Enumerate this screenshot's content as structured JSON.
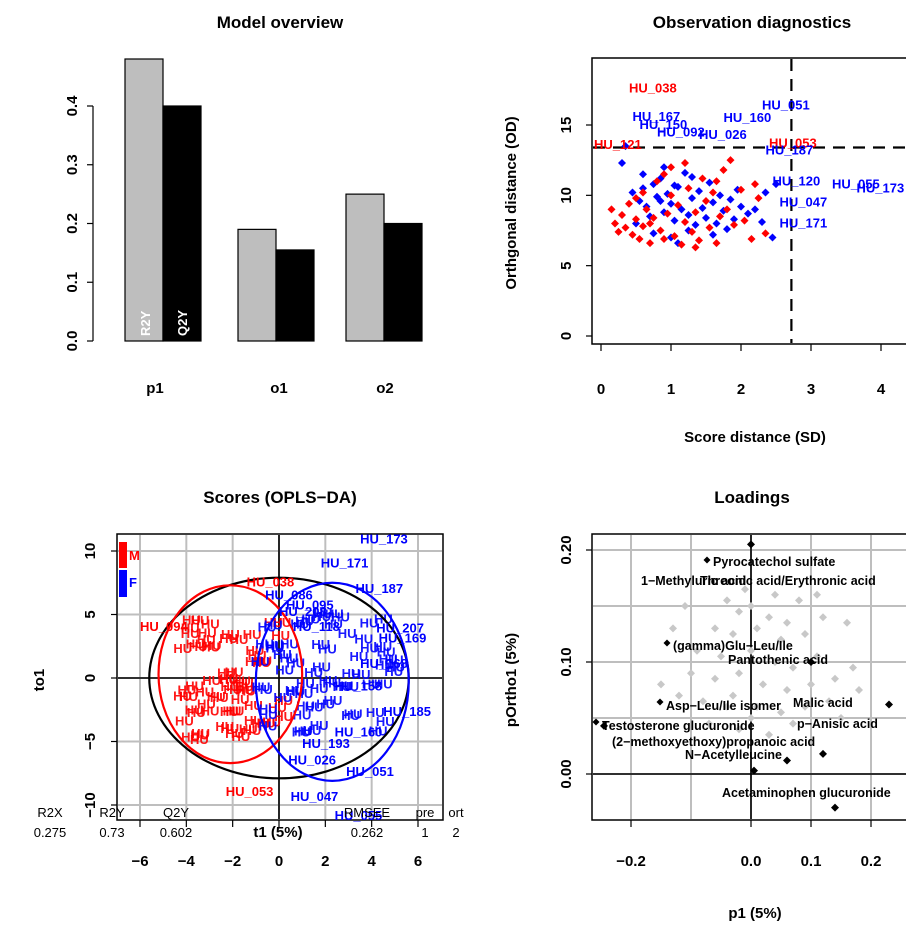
{
  "chart_data": [
    {
      "type": "bar",
      "title": "Model overview",
      "categories": [
        "p1",
        "o1",
        "o2"
      ],
      "series": [
        {
          "name": "R2Y",
          "color": "#bebebe",
          "values": [
            0.48,
            0.19,
            0.25
          ]
        },
        {
          "name": "Q2Y",
          "color": "#000000",
          "values": [
            0.4,
            0.155,
            0.2
          ]
        }
      ],
      "yticks": [
        "0.0",
        "0.1",
        "0.2",
        "0.3",
        "0.4"
      ],
      "ylim": [
        0,
        0.48
      ]
    },
    {
      "type": "scatter",
      "title": "Observation diagnostics",
      "xlabel": "Score distance (SD)",
      "ylabel": "Orthgonal distance (OD)",
      "xlim": [
        -0.2,
        4.3
      ],
      "ylim": [
        -0.5,
        20
      ],
      "xticks": [
        "0",
        "1",
        "2",
        "3",
        "4"
      ],
      "yticks": [
        "0",
        "5",
        "10",
        "15"
      ],
      "thresholds": {
        "sd": 2.72,
        "od": 13.4
      },
      "labels": [
        {
          "text": "HU_038",
          "x": 0.4,
          "y": 17.3,
          "color": "red"
        },
        {
          "text": "HU_167",
          "x": 0.45,
          "y": 15.3,
          "color": "blue"
        },
        {
          "text": "HU_150",
          "x": 0.55,
          "y": 14.7,
          "color": "blue"
        },
        {
          "text": "HU_160",
          "x": 1.75,
          "y": 15.2,
          "color": "blue"
        },
        {
          "text": "HU_051",
          "x": 2.3,
          "y": 16.1,
          "color": "blue"
        },
        {
          "text": "HU_092",
          "x": 0.8,
          "y": 14.2,
          "color": "blue"
        },
        {
          "text": "HU_026",
          "x": 1.4,
          "y": 14.0,
          "color": "blue"
        },
        {
          "text": "HU_121",
          "x": -0.1,
          "y": 13.3,
          "color": "red"
        },
        {
          "text": "HU_053",
          "x": 2.4,
          "y": 13.4,
          "color": "red"
        },
        {
          "text": "HU_187",
          "x": 2.35,
          "y": 12.9,
          "color": "blue"
        },
        {
          "text": "HU_120",
          "x": 2.45,
          "y": 10.7,
          "color": "blue"
        },
        {
          "text": "HU_055",
          "x": 3.3,
          "y": 10.5,
          "color": "blue"
        },
        {
          "text": "HU_173",
          "x": 3.65,
          "y": 10.2,
          "color": "blue"
        },
        {
          "text": "HU_047",
          "x": 2.55,
          "y": 9.2,
          "color": "blue"
        },
        {
          "text": "HU_171",
          "x": 2.55,
          "y": 7.7,
          "color": "blue"
        }
      ],
      "points": [
        [
          0.3,
          12.3,
          "blue"
        ],
        [
          0.35,
          13.5,
          "blue"
        ],
        [
          0.45,
          10.2,
          "blue"
        ],
        [
          0.55,
          9.6,
          "blue"
        ],
        [
          0.6,
          10.5,
          "blue"
        ],
        [
          0.65,
          9.2,
          "blue"
        ],
        [
          0.7,
          8.5,
          "blue"
        ],
        [
          0.75,
          10.8,
          "blue"
        ],
        [
          0.8,
          9.9,
          "blue"
        ],
        [
          0.85,
          11.2,
          "blue"
        ],
        [
          0.9,
          8.8,
          "blue"
        ],
        [
          0.95,
          10.1,
          "blue"
        ],
        [
          1.0,
          9.4,
          "blue"
        ],
        [
          1.05,
          8.2,
          "blue"
        ],
        [
          1.1,
          10.6,
          "blue"
        ],
        [
          1.15,
          9.0,
          "blue"
        ],
        [
          1.2,
          11.6,
          "blue"
        ],
        [
          1.25,
          8.6,
          "blue"
        ],
        [
          1.3,
          9.8,
          "blue"
        ],
        [
          1.35,
          7.9,
          "blue"
        ],
        [
          1.4,
          10.3,
          "blue"
        ],
        [
          1.45,
          9.1,
          "blue"
        ],
        [
          1.5,
          8.4,
          "blue"
        ],
        [
          1.55,
          10.9,
          "blue"
        ],
        [
          1.6,
          9.5,
          "blue"
        ],
        [
          1.65,
          8.0,
          "blue"
        ],
        [
          1.7,
          10.0,
          "blue"
        ],
        [
          1.75,
          8.9,
          "blue"
        ],
        [
          1.8,
          7.6,
          "blue"
        ],
        [
          1.85,
          9.7,
          "blue"
        ],
        [
          1.9,
          8.3,
          "blue"
        ],
        [
          1.95,
          10.4,
          "blue"
        ],
        [
          2.0,
          9.2,
          "blue"
        ],
        [
          2.1,
          8.7,
          "blue"
        ],
        [
          2.2,
          9.0,
          "blue"
        ],
        [
          2.3,
          8.1,
          "blue"
        ],
        [
          2.45,
          7.0,
          "blue"
        ],
        [
          2.35,
          10.2,
          "blue"
        ],
        [
          2.5,
          10.8,
          "blue"
        ],
        [
          0.5,
          8.0,
          "blue"
        ],
        [
          0.75,
          7.3,
          "blue"
        ],
        [
          1.0,
          7.0,
          "blue"
        ],
        [
          1.25,
          7.5,
          "blue"
        ],
        [
          0.9,
          12.0,
          "blue"
        ],
        [
          1.3,
          11.3,
          "blue"
        ],
        [
          1.1,
          6.6,
          "blue"
        ],
        [
          0.6,
          11.5,
          "blue"
        ],
        [
          1.6,
          7.2,
          "blue"
        ],
        [
          0.85,
          9.6,
          "blue"
        ],
        [
          1.05,
          10.7,
          "blue"
        ],
        [
          0.15,
          9.0,
          "red"
        ],
        [
          0.2,
          8.0,
          "red"
        ],
        [
          0.25,
          7.4,
          "red"
        ],
        [
          0.3,
          8.6,
          "red"
        ],
        [
          0.35,
          7.7,
          "red"
        ],
        [
          0.4,
          9.4,
          "red"
        ],
        [
          0.45,
          7.2,
          "red"
        ],
        [
          0.5,
          8.3,
          "red"
        ],
        [
          0.55,
          6.9,
          "red"
        ],
        [
          0.6,
          7.8,
          "red"
        ],
        [
          0.65,
          9.0,
          "red"
        ],
        [
          0.7,
          6.6,
          "red"
        ],
        [
          0.75,
          8.4,
          "red"
        ],
        [
          0.8,
          11.0,
          "red"
        ],
        [
          0.85,
          7.5,
          "red"
        ],
        [
          0.9,
          6.9,
          "red"
        ],
        [
          0.95,
          8.7,
          "red"
        ],
        [
          1.0,
          10.0,
          "red"
        ],
        [
          1.05,
          7.1,
          "red"
        ],
        [
          1.1,
          9.3,
          "red"
        ],
        [
          1.15,
          6.5,
          "red"
        ],
        [
          1.2,
          8.1,
          "red"
        ],
        [
          1.25,
          10.5,
          "red"
        ],
        [
          1.3,
          7.4,
          "red"
        ],
        [
          1.35,
          8.8,
          "red"
        ],
        [
          1.4,
          6.8,
          "red"
        ],
        [
          1.45,
          11.2,
          "red"
        ],
        [
          1.5,
          9.6,
          "red"
        ],
        [
          1.55,
          7.7,
          "red"
        ],
        [
          1.6,
          10.2,
          "red"
        ],
        [
          1.65,
          6.6,
          "red"
        ],
        [
          1.7,
          8.5,
          "red"
        ],
        [
          1.75,
          11.8,
          "red"
        ],
        [
          1.8,
          9.0,
          "red"
        ],
        [
          1.85,
          12.5,
          "red"
        ],
        [
          1.9,
          7.9,
          "red"
        ],
        [
          2.0,
          10.4,
          "red"
        ],
        [
          2.05,
          8.2,
          "red"
        ],
        [
          2.15,
          6.9,
          "red"
        ],
        [
          2.25,
          9.8,
          "red"
        ],
        [
          2.35,
          7.3,
          "red"
        ],
        [
          1.2,
          12.3,
          "red"
        ],
        [
          0.9,
          11.5,
          "red"
        ],
        [
          0.6,
          10.2,
          "red"
        ],
        [
          1.0,
          12.0,
          "red"
        ],
        [
          1.65,
          11.0,
          "red"
        ],
        [
          2.2,
          10.8,
          "red"
        ],
        [
          0.7,
          8.0,
          "red"
        ],
        [
          1.35,
          6.3,
          "red"
        ],
        [
          0.5,
          9.8,
          "red"
        ]
      ]
    },
    {
      "type": "scatter",
      "title": "Scores (OPLS−DA)",
      "xlabel": "t1 (5%)",
      "ylabel": "to1",
      "xlim": [
        -6.6,
        6.8
      ],
      "ylim": [
        -11.5,
        11.8
      ],
      "xticks": [
        "−6",
        "−4",
        "−2",
        "0",
        "2",
        "4",
        "6"
      ],
      "yticks": [
        "−10",
        "−5",
        "0",
        "5",
        "10"
      ],
      "legend": [
        {
          "label": "M",
          "color": "red"
        },
        {
          "label": "F",
          "color": "blue"
        }
      ],
      "labels": [
        {
          "text": "HU_173",
          "x": 3.5,
          "y": 10.6,
          "color": "blue"
        },
        {
          "text": "HU_171",
          "x": 1.8,
          "y": 8.7,
          "color": "blue"
        },
        {
          "text": "HU_187",
          "x": 3.3,
          "y": 6.7,
          "color": "blue"
        },
        {
          "text": "HU_038",
          "x": -1.4,
          "y": 7.2,
          "color": "red"
        },
        {
          "text": "HU_086",
          "x": -0.6,
          "y": 6.2,
          "color": "blue"
        },
        {
          "text": "HU_095",
          "x": 0.3,
          "y": 5.4,
          "color": "blue"
        },
        {
          "text": "HU_208",
          "x": 0.0,
          "y": 4.9,
          "color": "blue"
        },
        {
          "text": "HU_118",
          "x": 0.6,
          "y": 3.7,
          "color": "blue"
        },
        {
          "text": "HU_207",
          "x": 4.2,
          "y": 3.6,
          "color": "blue"
        },
        {
          "text": "HU_169",
          "x": 4.3,
          "y": 2.8,
          "color": "blue"
        },
        {
          "text": "HU_094",
          "x": -6.0,
          "y": 3.7,
          "color": "red"
        },
        {
          "text": "HU_168",
          "x": 3.5,
          "y": 0.8,
          "color": "blue"
        },
        {
          "text": "HU_158",
          "x": 2.4,
          "y": -1.0,
          "color": "blue"
        },
        {
          "text": "HU_185",
          "x": 4.5,
          "y": -3.0,
          "color": "blue"
        },
        {
          "text": "HU_160",
          "x": 2.4,
          "y": -4.6,
          "color": "blue"
        },
        {
          "text": "HU_193",
          "x": 1.0,
          "y": -5.5,
          "color": "blue"
        },
        {
          "text": "HU_026",
          "x": 0.4,
          "y": -6.8,
          "color": "blue"
        },
        {
          "text": "HU_051",
          "x": 2.9,
          "y": -7.7,
          "color": "blue"
        },
        {
          "text": "HU_053",
          "x": -2.3,
          "y": -9.3,
          "color": "red"
        },
        {
          "text": "HU_047",
          "x": 0.5,
          "y": -9.7,
          "color": "blue"
        },
        {
          "text": "HU_055",
          "x": 2.4,
          "y": -11.2,
          "color": "blue"
        }
      ],
      "ellipses": [
        {
          "cx": 0.0,
          "cy": 0.0,
          "rx": 5.6,
          "ry": 7.9,
          "color": "black"
        },
        {
          "cx": -2.1,
          "cy": 0.3,
          "rx": 3.1,
          "ry": 7.0,
          "color": "red"
        },
        {
          "cx": 2.3,
          "cy": -0.3,
          "rx": 3.3,
          "ry": 7.8,
          "color": "blue"
        }
      ]
    },
    {
      "type": "scatter",
      "title": "Loadings",
      "xlabel": "p1 (5%)",
      "ylabel": "pOrtho1 (5%)",
      "xlim": [
        -0.29,
        0.305
      ],
      "ylim": [
        -0.04,
        0.212
      ],
      "xticks": [
        "−0.2",
        "0.0",
        "0.1",
        "0.2"
      ],
      "yticks": [
        "0.00",
        "0.10",
        "0.20"
      ],
      "labeled_points": [
        {
          "text": "Pyrocatechol sulfate",
          "x": -0.055,
          "y": 0.185
        },
        {
          "text": "1−Methyluric acid",
          "x": -0.06,
          "y": 0.17
        },
        {
          "text": "Threonic acid/Erythronic acid",
          "x": 0.14,
          "y": 0.17
        },
        {
          "text": "(gamma)Glu−Leu/Ile",
          "x": -0.12,
          "y": 0.116
        },
        {
          "text": "Pantothenic acid",
          "x": 0.2,
          "y": 0.1
        },
        {
          "text": "Asp−Leu/Ile isomer",
          "x": -0.14,
          "y": 0.062
        },
        {
          "text": "Malic acid",
          "x": 0.23,
          "y": 0.062
        },
        {
          "text": "Testosterone glucuronide",
          "x": -0.245,
          "y": 0.043
        },
        {
          "text": "p−Anisic acid",
          "x": 0.235,
          "y": 0.043
        },
        {
          "text": "(2−methoxyethoxy)propanoic acid",
          "x": 0.12,
          "y": 0.03
        },
        {
          "text": "N−Acetylleucine",
          "x": 0.065,
          "y": 0.012
        },
        {
          "text": "Acetaminophen glucuronide",
          "x": 0.14,
          "y": -0.03
        }
      ],
      "gray_points": [
        [
          -0.04,
          0.155
        ],
        [
          -0.02,
          0.145
        ],
        [
          0.0,
          0.15
        ],
        [
          0.03,
          0.14
        ],
        [
          -0.06,
          0.13
        ],
        [
          -0.03,
          0.125
        ],
        [
          0.01,
          0.13
        ],
        [
          0.05,
          0.12
        ],
        [
          0.09,
          0.125
        ],
        [
          0.12,
          0.14
        ],
        [
          0.16,
          0.135
        ],
        [
          -0.09,
          0.11
        ],
        [
          -0.05,
          0.105
        ],
        [
          0.0,
          0.11
        ],
        [
          0.04,
          0.1
        ],
        [
          0.07,
          0.095
        ],
        [
          0.11,
          0.105
        ],
        [
          -0.1,
          0.09
        ],
        [
          -0.06,
          0.085
        ],
        [
          -0.02,
          0.09
        ],
        [
          0.02,
          0.08
        ],
        [
          0.06,
          0.075
        ],
        [
          0.1,
          0.08
        ],
        [
          0.14,
          0.085
        ],
        [
          -0.12,
          0.07
        ],
        [
          -0.08,
          0.065
        ],
        [
          -0.03,
          0.07
        ],
        [
          0.01,
          0.06
        ],
        [
          0.05,
          0.055
        ],
        [
          0.09,
          0.06
        ],
        [
          0.13,
          0.065
        ],
        [
          -0.07,
          0.045
        ],
        [
          -0.02,
          0.04
        ],
        [
          0.03,
          0.035
        ],
        [
          0.07,
          0.045
        ],
        [
          -0.15,
          0.08
        ],
        [
          0.17,
          0.095
        ],
        [
          -0.11,
          0.15
        ],
        [
          0.08,
          0.155
        ],
        [
          -0.01,
          0.165
        ],
        [
          0.04,
          0.16
        ],
        [
          0.11,
          0.16
        ],
        [
          -0.04,
          0.06
        ],
        [
          0.0,
          0.05
        ],
        [
          0.15,
          0.05
        ],
        [
          0.18,
          0.075
        ],
        [
          -0.13,
          0.13
        ],
        [
          0.06,
          0.135
        ]
      ]
    }
  ],
  "footer": {
    "r2x_label": "R2X",
    "r2x_value": "0.275",
    "r2y_label": "R2Y",
    "r2y_value": "0.73",
    "q2y_label": "Q2Y",
    "q2y_value": "0.602",
    "rmsee_label": "RMSEE",
    "rmsee_value": "0.262",
    "pre_label": "pre",
    "pre_value": "1",
    "ort_label": "ort",
    "ort_value": "2"
  }
}
